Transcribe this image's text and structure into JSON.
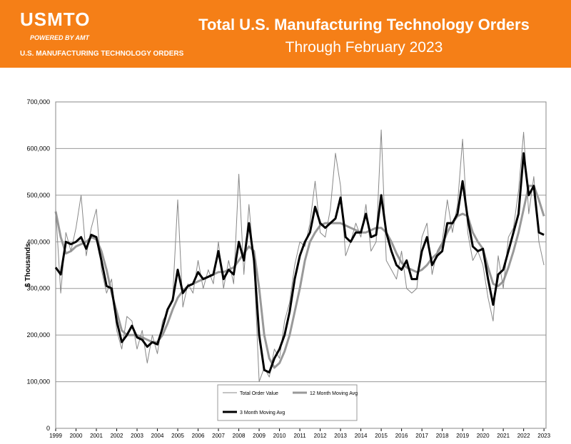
{
  "header": {
    "logo": "USMTO",
    "powered": "POWERED BY AMT",
    "tagline": "U.S. MANUFACTURING TECHNOLOGY ORDERS"
  },
  "chart_data": {
    "type": "line",
    "title": "Total U.S. Manufacturing Technology Orders",
    "subtitle": "Through February 2023",
    "y_label": "$ Thousands",
    "xlim": [
      1999,
      2023.1
    ],
    "xticks": [
      1999,
      2000,
      2001,
      2002,
      2003,
      2004,
      2005,
      2006,
      2007,
      2008,
      2009,
      2010,
      2011,
      2012,
      2013,
      2014,
      2015,
      2016,
      2017,
      2018,
      2019,
      2020,
      2021,
      2022,
      2023
    ],
    "ylim": [
      0,
      700000
    ],
    "yticks": [
      0,
      {
        "value": 100000,
        "label": "100,000"
      },
      {
        "value": 200000,
        "label": "200,000"
      },
      {
        "value": 300000,
        "label": "300,000"
      },
      {
        "value": 400000,
        "label": "400,000"
      },
      {
        "value": 500000,
        "label": "500,000"
      },
      {
        "value": 600000,
        "label": "600,000"
      },
      {
        "value": 700000,
        "label": "700,000"
      }
    ],
    "grid": true,
    "x": [
      1999,
      1999.25,
      1999.5,
      1999.75,
      2000,
      2000.25,
      2000.5,
      2000.75,
      2001,
      2001.25,
      2001.5,
      2001.75,
      2002,
      2002.25,
      2002.5,
      2002.75,
      2003,
      2003.25,
      2003.5,
      2003.75,
      2004,
      2004.25,
      2004.5,
      2004.75,
      2005,
      2005.25,
      2005.5,
      2005.75,
      2006,
      2006.25,
      2006.5,
      2006.75,
      2007,
      2007.25,
      2007.5,
      2007.75,
      2008,
      2008.25,
      2008.5,
      2008.75,
      2009,
      2009.25,
      2009.5,
      2009.75,
      2010,
      2010.25,
      2010.5,
      2010.75,
      2011,
      2011.25,
      2011.5,
      2011.75,
      2012,
      2012.25,
      2012.5,
      2012.75,
      2013,
      2013.25,
      2013.5,
      2013.75,
      2014,
      2014.25,
      2014.5,
      2014.75,
      2015,
      2015.25,
      2015.5,
      2015.75,
      2016,
      2016.25,
      2016.5,
      2016.75,
      2017,
      2017.25,
      2017.5,
      2017.75,
      2018,
      2018.25,
      2018.5,
      2018.75,
      2019,
      2019.25,
      2019.5,
      2019.75,
      2020,
      2020.25,
      2020.5,
      2020.75,
      2021,
      2021.25,
      2021.5,
      2021.75,
      2022,
      2022.25,
      2022.5,
      2022.75,
      2023
    ],
    "series": [
      {
        "name": "Total Order Value",
        "color": "#888888",
        "width": 1,
        "values": [
          470000,
          290000,
          420000,
          380000,
          430000,
          500000,
          370000,
          430000,
          470000,
          340000,
          290000,
          320000,
          210000,
          170000,
          240000,
          230000,
          170000,
          210000,
          140000,
          200000,
          160000,
          230000,
          250000,
          280000,
          490000,
          260000,
          310000,
          290000,
          360000,
          300000,
          340000,
          310000,
          400000,
          300000,
          360000,
          310000,
          545000,
          330000,
          480000,
          350000,
          100000,
          130000,
          110000,
          170000,
          150000,
          230000,
          270000,
          350000,
          400000,
          390000,
          440000,
          530000,
          420000,
          410000,
          470000,
          590000,
          520000,
          370000,
          400000,
          440000,
          410000,
          480000,
          380000,
          400000,
          640000,
          360000,
          340000,
          320000,
          380000,
          300000,
          290000,
          300000,
          410000,
          440000,
          330000,
          380000,
          400000,
          490000,
          420000,
          480000,
          620000,
          420000,
          360000,
          380000,
          350000,
          280000,
          230000,
          370000,
          300000,
          410000,
          430000,
          510000,
          635000,
          460000,
          540000,
          400000,
          350000
        ]
      },
      {
        "name": "12 Month Moving Avg",
        "color": "#999999",
        "width": 3,
        "values": [
          465000,
          410000,
          375000,
          380000,
          390000,
          395000,
          400000,
          410000,
          405000,
          380000,
          340000,
          290000,
          250000,
          210000,
          200000,
          200000,
          200000,
          195000,
          190000,
          185000,
          185000,
          200000,
          225000,
          255000,
          280000,
          295000,
          305000,
          310000,
          315000,
          320000,
          325000,
          330000,
          335000,
          335000,
          340000,
          345000,
          360000,
          375000,
          390000,
          380000,
          300000,
          200000,
          150000,
          130000,
          140000,
          165000,
          200000,
          250000,
          300000,
          360000,
          400000,
          420000,
          435000,
          440000,
          440000,
          440000,
          440000,
          435000,
          430000,
          425000,
          420000,
          420000,
          425000,
          430000,
          430000,
          420000,
          400000,
          375000,
          355000,
          345000,
          340000,
          335000,
          340000,
          350000,
          365000,
          375000,
          395000,
          420000,
          440000,
          455000,
          460000,
          455000,
          420000,
          400000,
          385000,
          345000,
          310000,
          305000,
          315000,
          345000,
          380000,
          420000,
          470000,
          520000,
          520000,
          490000,
          455000
        ]
      },
      {
        "name": "3 Month Moving Avg",
        "color": "#000000",
        "width": 3,
        "values": [
          345000,
          330000,
          400000,
          395000,
          400000,
          410000,
          385000,
          415000,
          410000,
          360000,
          305000,
          300000,
          230000,
          185000,
          200000,
          220000,
          195000,
          190000,
          175000,
          185000,
          180000,
          215000,
          255000,
          275000,
          340000,
          290000,
          305000,
          310000,
          335000,
          320000,
          325000,
          330000,
          380000,
          320000,
          340000,
          330000,
          400000,
          360000,
          440000,
          360000,
          200000,
          125000,
          120000,
          150000,
          170000,
          200000,
          250000,
          320000,
          370000,
          400000,
          420000,
          475000,
          440000,
          430000,
          440000,
          450000,
          495000,
          410000,
          400000,
          420000,
          420000,
          460000,
          410000,
          415000,
          500000,
          420000,
          380000,
          350000,
          340000,
          360000,
          320000,
          320000,
          380000,
          410000,
          350000,
          370000,
          380000,
          440000,
          440000,
          460000,
          530000,
          450000,
          390000,
          380000,
          385000,
          320000,
          265000,
          330000,
          340000,
          380000,
          420000,
          460000,
          590000,
          500000,
          520000,
          420000,
          415000
        ]
      }
    ]
  }
}
